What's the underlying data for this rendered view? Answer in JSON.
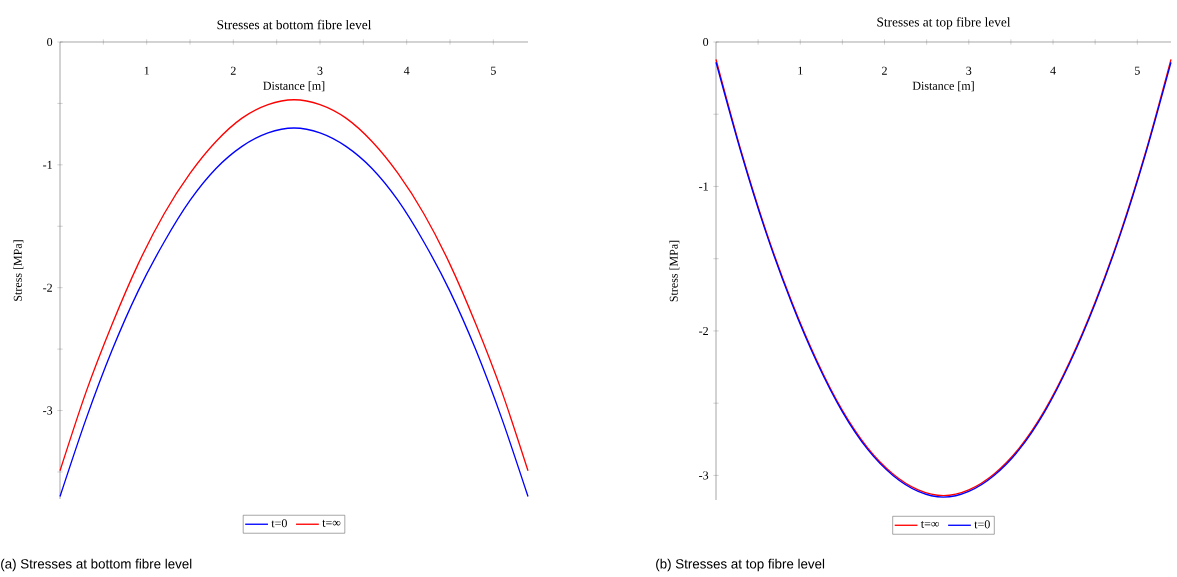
{
  "chart_data": [
    {
      "type": "line",
      "title": "Stresses at bottom fibre level",
      "xlabel": "Distance [m]",
      "ylabel": "Stress [MPa]",
      "x": [
        0,
        0.3,
        0.6,
        0.9,
        1.2,
        1.5,
        1.8,
        2.1,
        2.4,
        2.7,
        3.0,
        3.3,
        3.6,
        3.9,
        4.2,
        4.5,
        4.8,
        5.1,
        5.4
      ],
      "series": [
        {
          "name": "t=0",
          "color": "#0000ff",
          "values": [
            -3.7,
            -3.07,
            -2.51,
            -2.03,
            -1.63,
            -1.29,
            -1.03,
            -0.85,
            -0.74,
            -0.7,
            -0.74,
            -0.85,
            -1.03,
            -1.29,
            -1.63,
            -2.03,
            -2.51,
            -3.07,
            -3.7
          ]
        },
        {
          "name": "t=∞",
          "color": "#ff0000",
          "values": [
            -3.49,
            -2.85,
            -2.3,
            -1.81,
            -1.4,
            -1.07,
            -0.81,
            -0.62,
            -0.51,
            -0.47,
            -0.51,
            -0.62,
            -0.81,
            -1.07,
            -1.4,
            -1.81,
            -2.3,
            -2.85,
            -3.49
          ]
        }
      ],
      "xlim": [
        0,
        5.4
      ],
      "ylim": [
        -3.72,
        0
      ],
      "xticks": [
        {
          "value": 0.5,
          "label": null
        },
        1,
        {
          "value": 1.5,
          "label": null
        },
        2,
        {
          "value": 2.5,
          "label": null
        },
        3,
        {
          "value": 3.5,
          "label": null
        },
        4,
        {
          "value": 4.5,
          "label": null
        },
        5
      ],
      "yticks": [
        0,
        {
          "value": -0.5,
          "label": null
        },
        -1,
        {
          "value": -1.5,
          "label": null
        },
        -2,
        {
          "value": -2.5,
          "label": null
        },
        -3,
        {
          "value": -3.5,
          "label": null
        }
      ],
      "legend": "bottom",
      "annotations": [
        "(a) Stresses at bottom fibre level"
      ]
    },
    {
      "type": "line",
      "title": "Stresses at top fibre level",
      "xlabel": "Distance [m]",
      "ylabel": "Stress [MPa]",
      "x": [
        0,
        0.3,
        0.6,
        0.9,
        1.2,
        1.5,
        1.8,
        2.1,
        2.4,
        2.7,
        3.0,
        3.3,
        3.6,
        3.9,
        4.2,
        4.5,
        4.8,
        5.1,
        5.4
      ],
      "series": [
        {
          "name": "t=∞",
          "color": "#ff0000",
          "values": [
            -0.12,
            -0.76,
            -1.32,
            -1.8,
            -2.21,
            -2.55,
            -2.81,
            -2.99,
            -3.1,
            -3.14,
            -3.1,
            -2.99,
            -2.81,
            -2.55,
            -2.21,
            -1.8,
            -1.32,
            -0.76,
            -0.12
          ]
        },
        {
          "name": "t=0",
          "color": "#0000ff",
          "values": [
            -0.14,
            -0.77,
            -1.33,
            -1.81,
            -2.22,
            -2.56,
            -2.82,
            -3.0,
            -3.11,
            -3.15,
            -3.11,
            -3.0,
            -2.82,
            -2.56,
            -2.22,
            -1.81,
            -1.33,
            -0.77,
            -0.14
          ]
        }
      ],
      "xlim": [
        0,
        5.4
      ],
      "ylim": [
        -3.17,
        0
      ],
      "xticks": [
        {
          "value": 0.5,
          "label": null
        },
        1,
        {
          "value": 1.5,
          "label": null
        },
        2,
        {
          "value": 2.5,
          "label": null
        },
        3,
        {
          "value": 3.5,
          "label": null
        },
        4,
        {
          "value": 4.5,
          "label": null
        },
        5
      ],
      "yticks": [
        0,
        {
          "value": -0.5,
          "label": null
        },
        -1,
        {
          "value": -1.5,
          "label": null
        },
        -2,
        {
          "value": -2.5,
          "label": null
        },
        -3
      ],
      "legend": "bottom",
      "annotations": [
        "(b) Stresses at top fibre level"
      ]
    }
  ]
}
